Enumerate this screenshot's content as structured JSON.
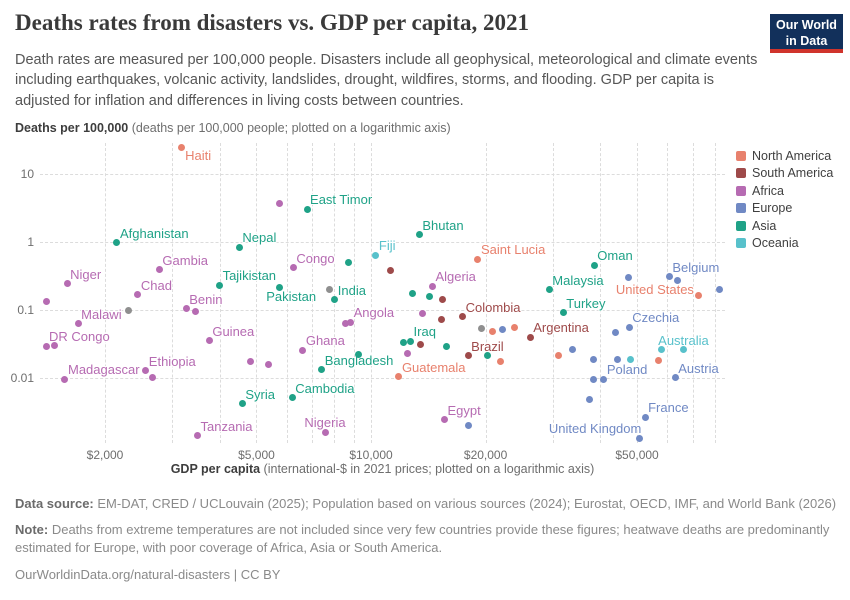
{
  "header": {
    "title": "Deaths rates from disasters vs. GDP per capita, 2021",
    "subtitle": "Death rates are measured per 100,000 people. Disasters include all geophysical, meteorological and climate events including earthquakes, volcanic activity, landslides, drought, wildfires, storms, and flooding. GDP per capita is adjusted for inflation and differences in living costs between countries.",
    "logo_line1": "Our World",
    "logo_line2": "in Data"
  },
  "axes": {
    "y_title_bold": "Deaths per 100,000",
    "y_title_rest": " (deaths per 100,000 people; plotted on a logarithmic axis)",
    "x_title_bold": "GDP per capita",
    "x_title_rest": " (international-$ in 2021 prices; plotted on a logarithmic axis)",
    "y_ticks": [
      {
        "v": 10,
        "label": "10"
      },
      {
        "v": 1,
        "label": "1"
      },
      {
        "v": 0.1,
        "label": "0.1"
      },
      {
        "v": 0.01,
        "label": "0.01"
      }
    ],
    "x_ticks": [
      {
        "v": 2000,
        "label": "$2,000"
      },
      {
        "v": 5000,
        "label": "$5,000"
      },
      {
        "v": 10000,
        "label": "$10,000"
      },
      {
        "v": 20000,
        "label": "$20,000"
      },
      {
        "v": 50000,
        "label": "$50,000"
      }
    ],
    "x_gridlines": [
      2000,
      3000,
      4000,
      5000,
      6000,
      7000,
      8000,
      9000,
      10000,
      20000,
      30000,
      40000,
      50000,
      60000,
      70000,
      80000
    ],
    "y_gridlines": [
      10,
      1,
      0.1,
      0.01
    ]
  },
  "legend": {
    "items": [
      {
        "code": "NA",
        "label": "North America",
        "color": "#E8816D"
      },
      {
        "code": "SA",
        "label": "South America",
        "color": "#9E4A4A"
      },
      {
        "code": "AF",
        "label": "Africa",
        "color": "#B66BB2"
      },
      {
        "code": "EU",
        "label": "Europe",
        "color": "#7089C4"
      },
      {
        "code": "AS",
        "label": "Asia",
        "color": "#1FA287"
      },
      {
        "code": "OC",
        "label": "Oceania",
        "color": "#58C1CB"
      }
    ],
    "other_color": "#8F8F8F"
  },
  "chart_data": {
    "type": "scatter",
    "title": "Deaths rates from disasters vs. GDP per capita, 2021",
    "xlabel": "GDP per capita (international-$ in 2021 prices; plotted on a logarithmic axis)",
    "ylabel": "Deaths per 100,000 (deaths per 100,000 people; plotted on a logarithmic axis)",
    "x_scale": "log",
    "y_scale": "log",
    "xlim": [
      1350,
      90000
    ],
    "ylim": [
      0.001,
      30
    ],
    "grid": true,
    "legend_position": "right",
    "points": [
      {
        "n": "Haiti",
        "c": "NA",
        "g": 3170,
        "r": 24,
        "lp": "r"
      },
      {
        "n": "East Timor",
        "c": "AS",
        "g": 6790,
        "r": 3.0,
        "lp": "ar"
      },
      {
        "n": "Afghanistan",
        "c": "AS",
        "g": 2150,
        "r": 0.96,
        "lp": "ar"
      },
      {
        "n": "Nepal",
        "c": "AS",
        "g": 4510,
        "r": 0.82,
        "lp": "ar"
      },
      {
        "n": "Bhutan",
        "c": "AS",
        "g": 13400,
        "r": 1.26,
        "lp": "ar"
      },
      {
        "n": "Fiji",
        "c": "OC",
        "g": 10300,
        "r": 0.63,
        "lp": "ar"
      },
      {
        "n": "Saint Lucia",
        "c": "NA",
        "g": 19100,
        "r": 0.545,
        "lp": "ar"
      },
      {
        "n": "Niger",
        "c": "AF",
        "g": 1590,
        "r": 0.24,
        "lp": "ar"
      },
      {
        "n": "Gambia",
        "c": "AF",
        "g": 2780,
        "r": 0.385,
        "lp": "ar"
      },
      {
        "n": "Congo",
        "c": "AF",
        "g": 6250,
        "r": 0.41,
        "lp": "ar"
      },
      {
        "n": "Tajikistan",
        "c": "AS",
        "g": 4000,
        "r": 0.227,
        "lp": "ar"
      },
      {
        "n": "Chad",
        "c": "AF",
        "g": 2440,
        "r": 0.165,
        "lp": "ar"
      },
      {
        "n": "Pakistan",
        "c": "AS",
        "g": 5740,
        "r": 0.214,
        "lp": "b"
      },
      {
        "n": "India",
        "c": "AS",
        "g": 8030,
        "r": 0.139,
        "lp": "ar"
      },
      {
        "n": "Algeria",
        "c": "AF",
        "g": 14500,
        "r": 0.221,
        "lp": "ar"
      },
      {
        "n": "Malaysia",
        "c": "AS",
        "g": 29400,
        "r": 0.196,
        "lp": "ar"
      },
      {
        "n": "Oman",
        "c": "AS",
        "g": 38600,
        "r": 0.444,
        "lp": "ar"
      },
      {
        "n": "Belgium",
        "c": "EU",
        "g": 60800,
        "r": 0.304,
        "lp": "ar"
      },
      {
        "n": "United States",
        "c": "NA",
        "g": 72700,
        "r": 0.163,
        "lp": "l"
      },
      {
        "n": "Turkey",
        "c": "AS",
        "g": 32000,
        "r": 0.089,
        "lp": "ar"
      },
      {
        "n": "Czechia",
        "c": "EU",
        "g": 47700,
        "r": 0.0547,
        "lp": "ar"
      },
      {
        "n": "Malawi",
        "c": "AF",
        "g": 1700,
        "r": 0.0614,
        "lp": "ar"
      },
      {
        "n": "Benin",
        "c": "AF",
        "g": 3270,
        "r": 0.102,
        "lp": "ar"
      },
      {
        "n": "Angola",
        "c": "AF",
        "g": 8840,
        "r": 0.065,
        "lp": "ar"
      },
      {
        "n": "Colombia",
        "c": "SA",
        "g": 17400,
        "r": 0.078,
        "lp": "ar"
      },
      {
        "n": "Argentina",
        "c": "SA",
        "g": 26200,
        "r": 0.0389,
        "lp": "ar"
      },
      {
        "n": "Brazil",
        "c": "SA",
        "g": 18000,
        "r": 0.0208,
        "lp": "ar"
      },
      {
        "n": "DR Congo",
        "c": "AF",
        "g": 1400,
        "r": 0.0288,
        "lp": "ar"
      },
      {
        "n": "Guinea",
        "c": "AF",
        "g": 3760,
        "r": 0.0347,
        "lp": "ar"
      },
      {
        "n": "Iraq",
        "c": "AS",
        "g": 12700,
        "r": 0.0339,
        "lp": "ar"
      },
      {
        "n": "Ghana",
        "c": "AF",
        "g": 6620,
        "r": 0.0253,
        "lp": "ar"
      },
      {
        "n": "Bangladesh",
        "c": "AS",
        "g": 7420,
        "r": 0.0129,
        "lp": "ar"
      },
      {
        "n": "Australia",
        "c": "OC",
        "g": 66200,
        "r": 0.0254,
        "lp": "a"
      },
      {
        "n": "Madagascar",
        "c": "AF",
        "g": 1570,
        "r": 0.0094,
        "lp": "ar"
      },
      {
        "n": "Ethiopia",
        "c": "AF",
        "g": 2560,
        "r": 0.0125,
        "lp": "ar"
      },
      {
        "n": "Guatemala",
        "c": "NA",
        "g": 11840,
        "r": 0.0102,
        "lp": "ar"
      },
      {
        "n": "Poland",
        "c": "EU",
        "g": 40900,
        "r": 0.0095,
        "lp": "ar"
      },
      {
        "n": "Austria",
        "c": "EU",
        "g": 63000,
        "r": 0.0099,
        "lp": "ar"
      },
      {
        "n": "Syria",
        "c": "AS",
        "g": 4590,
        "r": 0.0041,
        "lp": "ar"
      },
      {
        "n": "Cambodia",
        "c": "AS",
        "g": 6210,
        "r": 0.005,
        "lp": "ar"
      },
      {
        "n": "Egypt",
        "c": "AF",
        "g": 15600,
        "r": 0.0024,
        "lp": "ar"
      },
      {
        "n": "France",
        "c": "EU",
        "g": 52500,
        "r": 0.0026,
        "lp": "ar"
      },
      {
        "n": "Tanzania",
        "c": "AF",
        "g": 3500,
        "r": 0.0014,
        "lp": "ar"
      },
      {
        "n": "Nigeria",
        "c": "AF",
        "g": 7570,
        "r": 0.00157,
        "lp": "a"
      },
      {
        "n": "United Kingdom",
        "c": "EU",
        "g": 50700,
        "r": 0.00128,
        "lp": "al"
      },
      {
        "n": "",
        "c": "AF",
        "g": 5760,
        "r": 3.68
      },
      {
        "n": "",
        "c": "AS",
        "g": 8740,
        "r": 0.49
      },
      {
        "n": "",
        "c": "SA",
        "g": 11230,
        "r": 0.378
      },
      {
        "n": "",
        "c": "XX",
        "g": 7800,
        "r": 0.196
      },
      {
        "n": "",
        "c": "XX",
        "g": 2300,
        "r": 0.0966
      },
      {
        "n": "",
        "c": "XX",
        "g": 19500,
        "r": 0.052
      },
      {
        "n": "",
        "c": "AF",
        "g": 1400,
        "r": 0.133
      },
      {
        "n": "",
        "c": "AF",
        "g": 3450,
        "r": 0.0934
      },
      {
        "n": "",
        "c": "AF",
        "g": 1470,
        "r": 0.0298
      },
      {
        "n": "",
        "c": "AF",
        "g": 2670,
        "r": 0.0099
      },
      {
        "n": "",
        "c": "AF",
        "g": 4810,
        "r": 0.017
      },
      {
        "n": "",
        "c": "AF",
        "g": 5370,
        "r": 0.0157
      },
      {
        "n": "",
        "c": "AS",
        "g": 9260,
        "r": 0.0215
      },
      {
        "n": "",
        "c": "AF",
        "g": 8580,
        "r": 0.0627
      },
      {
        "n": "",
        "c": "AS",
        "g": 12830,
        "r": 0.171
      },
      {
        "n": "",
        "c": "AS",
        "g": 14230,
        "r": 0.157
      },
      {
        "n": "",
        "c": "SA",
        "g": 15380,
        "r": 0.141
      },
      {
        "n": "",
        "c": "AF",
        "g": 13670,
        "r": 0.0864
      },
      {
        "n": "",
        "c": "AS",
        "g": 12140,
        "r": 0.0328
      },
      {
        "n": "",
        "c": "SA",
        "g": 13450,
        "r": 0.0303
      },
      {
        "n": "",
        "c": "AF",
        "g": 12500,
        "r": 0.0228
      },
      {
        "n": "",
        "c": "AS",
        "g": 15830,
        "r": 0.0286
      },
      {
        "n": "",
        "c": "SA",
        "g": 15300,
        "r": 0.072
      },
      {
        "n": "",
        "c": "NA",
        "g": 20800,
        "r": 0.0471
      },
      {
        "n": "",
        "c": "EU",
        "g": 22100,
        "r": 0.05
      },
      {
        "n": "",
        "c": "NA",
        "g": 23750,
        "r": 0.0547
      },
      {
        "n": "",
        "c": "AS",
        "g": 20210,
        "r": 0.0208
      },
      {
        "n": "",
        "c": "NA",
        "g": 21950,
        "r": 0.017
      },
      {
        "n": "",
        "c": "NA",
        "g": 31050,
        "r": 0.0213
      },
      {
        "n": "",
        "c": "EU",
        "g": 33800,
        "r": 0.0262
      },
      {
        "n": "",
        "c": "EU",
        "g": 38400,
        "r": 0.0181
      },
      {
        "n": "",
        "c": "EU",
        "g": 44300,
        "r": 0.0181
      },
      {
        "n": "",
        "c": "OC",
        "g": 48100,
        "r": 0.0182
      },
      {
        "n": "",
        "c": "NA",
        "g": 57000,
        "r": 0.0175
      },
      {
        "n": "",
        "c": "OC",
        "g": 58000,
        "r": 0.0259
      },
      {
        "n": "",
        "c": "EU",
        "g": 44000,
        "r": 0.0461
      },
      {
        "n": "",
        "c": "EU",
        "g": 47400,
        "r": 0.291
      },
      {
        "n": "",
        "c": "EU",
        "g": 63800,
        "r": 0.2625
      },
      {
        "n": "",
        "c": "EU",
        "g": 82500,
        "r": 0.1936
      },
      {
        "n": "",
        "c": "EU",
        "g": 38500,
        "r": 0.0092
      },
      {
        "n": "",
        "c": "EU",
        "g": 37440,
        "r": 0.00475
      },
      {
        "n": "",
        "c": "EU",
        "g": 18010,
        "r": 0.00198
      }
    ]
  },
  "footer": {
    "source_label": "Data source:",
    "source_text": " EM-DAT, CRED / UCLouvain (2025); Population based on various sources (2024); Eurostat, OECD, IMF, and World Bank (2026)",
    "note_label": "Note:",
    "note_text": " Deaths from extreme temperatures are not included since very few countries provide these figures; heatwave deaths are predominantly estimated for Europe, with poor coverage of Africa, Asia or South America.",
    "url": "OurWorldinData.org/natural-disasters",
    "separator": " | ",
    "license": "CC BY"
  }
}
